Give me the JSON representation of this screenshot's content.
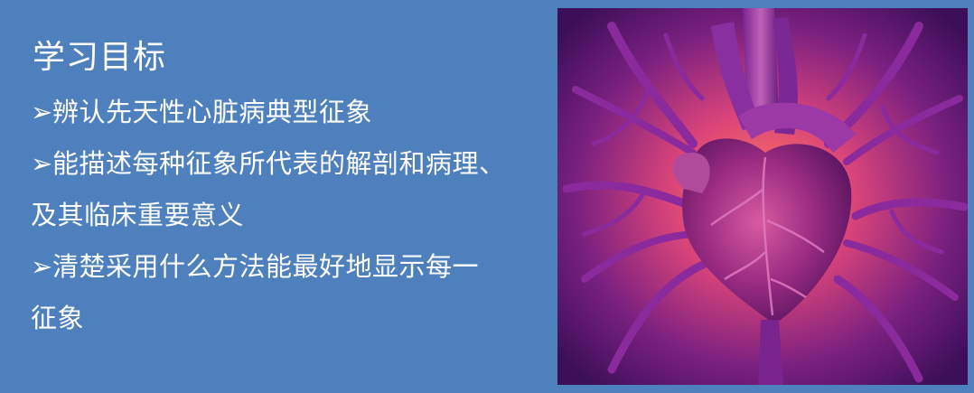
{
  "slide": {
    "title": "学习目标",
    "bullets": [
      {
        "marker": "➢",
        "text": "辨认先天性心脏病典型征象"
      },
      {
        "marker": "➢",
        "text": "能描述每种征象所代表的解剖和病理、"
      },
      {
        "marker": "",
        "text": "及其临床重要意义"
      },
      {
        "marker": "➢",
        "text": "清楚采用什么方法能最好地显示每一"
      },
      {
        "marker": "",
        "text": "征象"
      }
    ]
  },
  "image": {
    "subject": "heart-illustration",
    "colors": {
      "background_glow": "#ff6b5a",
      "background_dark": "#3d0f5a",
      "vessels": "#8a2a9c",
      "heart": "#a63a8c"
    }
  },
  "colors": {
    "slide_background": "#4f80be",
    "text": "#ffffff"
  }
}
